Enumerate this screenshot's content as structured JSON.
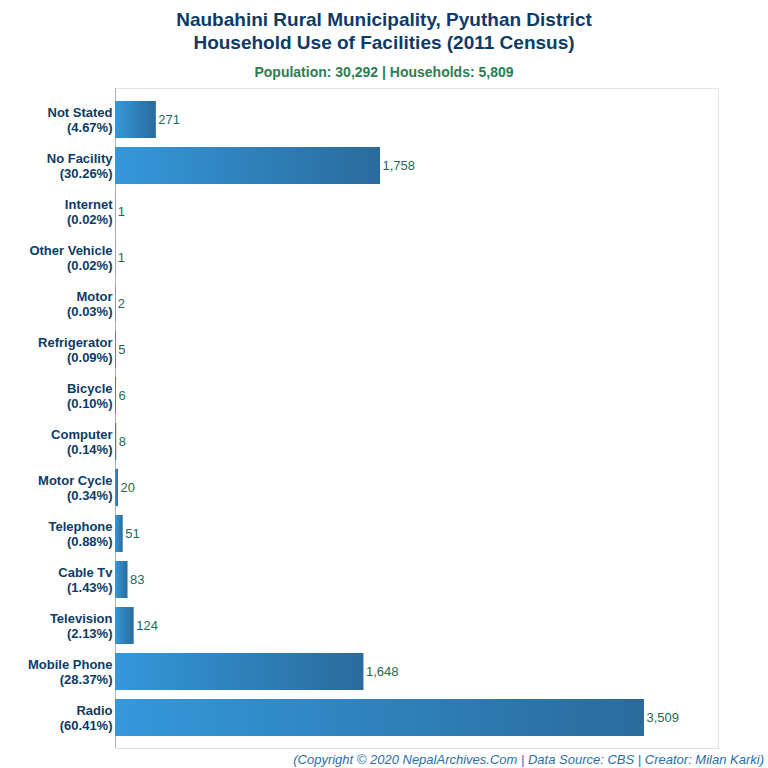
{
  "chart_data": {
    "type": "bar",
    "orientation": "horizontal",
    "title": "Naubahini Rural Municipality, Pyuthan District\nHousehold Use of Facilities (2011 Census)",
    "subtitle": "Population: 30,292 | Households: 5,809",
    "caption": "(Copyright © 2020 NepalArchives.Com | Data Source: CBS | Creator: Milan Karki)",
    "categories": [
      "Not Stated\n(4.67%)",
      "No Facility\n(30.26%)",
      "Internet\n(0.02%)",
      "Other Vehicle\n(0.02%)",
      "Motor\n(0.03%)",
      "Refrigerator\n(0.09%)",
      "Bicycle\n(0.10%)",
      "Computer\n(0.14%)",
      "Motor Cycle\n(0.34%)",
      "Telephone\n(0.88%)",
      "Cable Tv\n(1.43%)",
      "Television\n(2.13%)",
      "Mobile Phone\n(28.37%)",
      "Radio\n(60.41%)"
    ],
    "values": [
      271,
      1758,
      1,
      1,
      2,
      5,
      6,
      8,
      20,
      51,
      83,
      124,
      1648,
      3509
    ],
    "value_labels": [
      "271",
      "1,758",
      "1",
      "1",
      "2",
      "5",
      "6",
      "8",
      "20",
      "51",
      "83",
      "124",
      "1,648",
      "3,509"
    ],
    "data_labels": true,
    "xlim": [
      0,
      4000
    ],
    "tick_labels": "y",
    "grid": false,
    "color": "#3498db"
  }
}
